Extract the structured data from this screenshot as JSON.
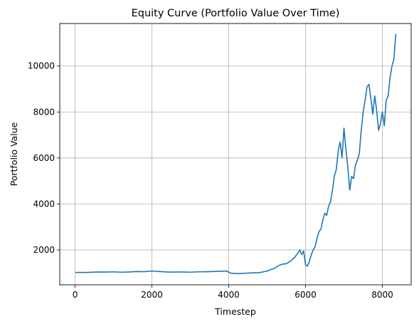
{
  "chart_data": {
    "type": "line",
    "title": "Equity Curve (Portfolio Value Over Time)",
    "xlabel": "Timestep",
    "ylabel": "Portfolio Value",
    "xlim": [
      -400,
      8750
    ],
    "ylim": [
      480,
      11850
    ],
    "xticks": [
      0,
      2000,
      4000,
      6000,
      8000
    ],
    "yticks": [
      2000,
      4000,
      6000,
      8000,
      10000
    ],
    "grid": true,
    "line_color": "#1f77b4",
    "series": [
      {
        "x": [
          0,
          200,
          400,
          600,
          800,
          1000,
          1200,
          1400,
          1600,
          1800,
          2000,
          2200,
          2400,
          2600,
          2800,
          3000,
          3200,
          3400,
          3600,
          3800,
          3950,
          4050,
          4200,
          4400,
          4600,
          4800,
          5000,
          5100,
          5200,
          5300,
          5400,
          5500,
          5600,
          5700,
          5800,
          5850,
          5900,
          5950,
          6000,
          6050,
          6100,
          6150,
          6200,
          6250,
          6300,
          6350,
          6400,
          6450,
          6500,
          6550,
          6600,
          6650,
          6700,
          6750,
          6800,
          6850,
          6900,
          6950,
          7000,
          7050,
          7100,
          7150,
          7200,
          7250,
          7300,
          7350,
          7400,
          7450,
          7500,
          7550,
          7600,
          7650,
          7700,
          7750,
          7800,
          7850,
          7900,
          7950,
          8000,
          8050,
          8100,
          8150,
          8200,
          8250,
          8300,
          8350
        ],
        "y": [
          1020,
          1015,
          1025,
          1040,
          1035,
          1045,
          1030,
          1040,
          1060,
          1050,
          1080,
          1060,
          1040,
          1035,
          1040,
          1030,
          1045,
          1050,
          1060,
          1070,
          1080,
          990,
          970,
          980,
          1000,
          1010,
          1080,
          1150,
          1200,
          1320,
          1380,
          1400,
          1500,
          1650,
          1850,
          2000,
          1800,
          1950,
          1350,
          1300,
          1500,
          1800,
          2000,
          2150,
          2500,
          2800,
          2900,
          3300,
          3600,
          3500,
          3900,
          4100,
          4600,
          5200,
          5500,
          6300,
          6700,
          6000,
          7300,
          6400,
          5600,
          4600,
          5200,
          5100,
          5700,
          5900,
          6200,
          7200,
          8000,
          8500,
          9100,
          9200,
          8600,
          7900,
          8700,
          8100,
          7200,
          7500,
          8000,
          7400,
          8500,
          8700,
          9500,
          10000,
          10300,
          11400
        ]
      }
    ]
  }
}
